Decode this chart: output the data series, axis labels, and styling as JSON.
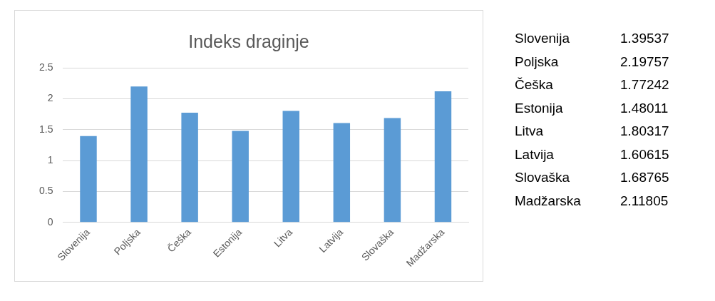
{
  "chart_data": [
    {
      "type": "bar",
      "title": "Indeks draginje",
      "categories": [
        "Slovenija",
        "Poljska",
        "Češka",
        "Estonija",
        "Litva",
        "Latvija",
        "Slovaška",
        "Madžarska"
      ],
      "values": [
        1.39537,
        2.19757,
        1.77242,
        1.48011,
        1.80317,
        1.60615,
        1.68765,
        2.11805
      ],
      "color": "#5b9bd5",
      "ylim": [
        0,
        2.5
      ],
      "yticks": [
        0,
        0.5,
        1,
        1.5,
        2,
        2.5
      ],
      "grid": "y"
    },
    {
      "type": "other",
      "categories": [
        "Slovenija",
        "Poljska",
        "Češka",
        "Estonija",
        "Litva",
        "Latvija",
        "Slovaška",
        "Madžarska"
      ],
      "values": [
        1.39537,
        2.19757,
        1.77242,
        1.48011,
        1.80317,
        1.60615,
        1.68765,
        2.11805
      ],
      "data_labels": true
    }
  ]
}
